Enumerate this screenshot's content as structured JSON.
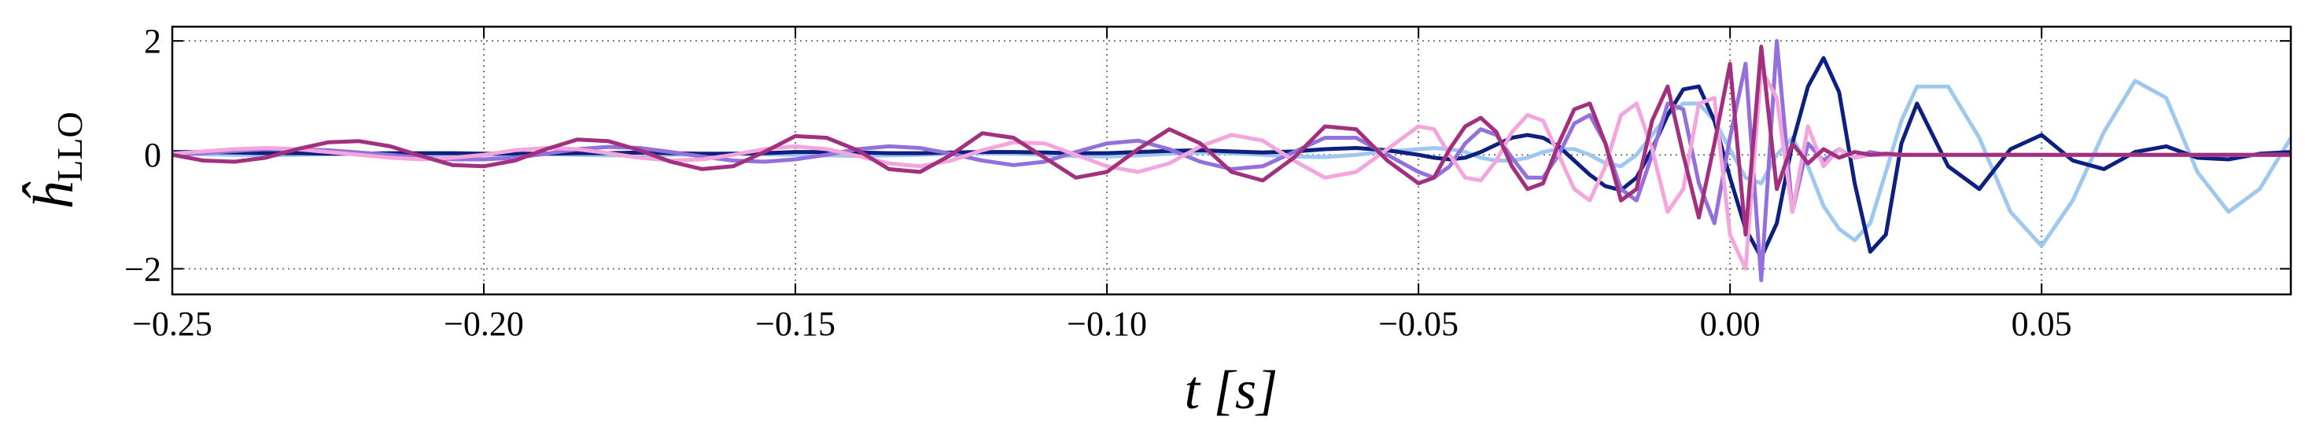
{
  "chart_data": {
    "type": "line",
    "xlabel": "t [s]",
    "ylabel": "ĥ",
    "ylabel_sub": "LLO",
    "xlim": [
      -0.25,
      0.09
    ],
    "ylim": [
      -2.45,
      2.25
    ],
    "xticks": [
      {
        "value": -0.25,
        "label": "−0.25"
      },
      {
        "value": -0.2,
        "label": "−0.20"
      },
      {
        "value": -0.15,
        "label": "−0.15"
      },
      {
        "value": -0.1,
        "label": "−0.10"
      },
      {
        "value": -0.05,
        "label": "−0.05"
      },
      {
        "value": 0,
        "label": "0.00"
      },
      {
        "value": 0.05,
        "label": "0.05"
      }
    ],
    "yticks": [
      {
        "value": -2,
        "label": "−2"
      },
      0,
      2
    ],
    "grid": true,
    "x": [
      -0.25,
      -0.245,
      -0.24,
      -0.235,
      -0.23,
      -0.225,
      -0.22,
      -0.215,
      -0.21,
      -0.205,
      -0.2,
      -0.195,
      -0.19,
      -0.185,
      -0.18,
      -0.175,
      -0.17,
      -0.165,
      -0.16,
      -0.155,
      -0.15,
      -0.145,
      -0.14,
      -0.135,
      -0.13,
      -0.125,
      -0.12,
      -0.115,
      -0.11,
      -0.105,
      -0.1,
      -0.095,
      -0.09,
      -0.085,
      -0.08,
      -0.075,
      -0.07,
      -0.065,
      -0.06,
      -0.055,
      -0.05,
      -0.0475,
      -0.045,
      -0.0425,
      -0.04,
      -0.0375,
      -0.035,
      -0.0325,
      -0.03,
      -0.0275,
      -0.025,
      -0.0225,
      -0.02,
      -0.0175,
      -0.015,
      -0.0125,
      -0.01,
      -0.0075,
      -0.005,
      -0.0025,
      0,
      0.0025,
      0.005,
      0.0075,
      0.01,
      0.0125,
      0.015,
      0.0175,
      0.02,
      0.0225,
      0.025,
      0.0275,
      0.03,
      0.035,
      0.04,
      0.045,
      0.05,
      0.055,
      0.06,
      0.065,
      0.07,
      0.075,
      0.08,
      0.085,
      0.09
    ],
    "series": [
      {
        "color": "#9fc8ee",
        "values": [
          0.02,
          0.01,
          0,
          -0.01,
          0,
          0.01,
          0.02,
          0.01,
          0,
          -0.01,
          0,
          0.01,
          0.01,
          0,
          -0.01,
          -0.01,
          0,
          0.01,
          0.02,
          0.01,
          0,
          -0.01,
          -0.02,
          -0.01,
          0,
          0.02,
          0.03,
          0.02,
          0,
          -0.02,
          -0.03,
          -0.01,
          0.02,
          0.04,
          0.03,
          0,
          -0.03,
          -0.04,
          0,
          0.06,
          0.1,
          0.12,
          0.1,
          0.05,
          -0.05,
          -0.1,
          -0.1,
          -0.05,
          0.05,
          0.1,
          0.1,
          0,
          -0.15,
          -0.2,
          0,
          0.35,
          0.7,
          0.9,
          0.9,
          0.6,
          0.1,
          -0.4,
          -0.5,
          0,
          0.3,
          -0.2,
          -0.9,
          -1.3,
          -1.5,
          -1.2,
          -0.3,
          0.6,
          1.2,
          1.2,
          0.3,
          -1,
          -1.6,
          -0.8,
          0.4,
          1.3,
          1,
          -0.3,
          -1,
          -0.6,
          0.3
        ]
      },
      {
        "color": "#0d2080",
        "values": [
          0.05,
          0.05,
          0.04,
          0.03,
          0.03,
          0.02,
          0.02,
          0.03,
          0.03,
          0.03,
          0.02,
          0.02,
          0.02,
          0.03,
          0.03,
          0.04,
          0.03,
          0.02,
          0.02,
          0.03,
          0.05,
          0.05,
          0.04,
          0.03,
          0.03,
          0.04,
          0.05,
          0.05,
          0.04,
          0.03,
          0.03,
          0.05,
          0.07,
          0.08,
          0.06,
          0.04,
          0.06,
          0.1,
          0.12,
          0.08,
          0,
          -0.05,
          -0.08,
          -0.05,
          0.05,
          0.18,
          0.3,
          0.35,
          0.3,
          0.15,
          -0.1,
          -0.35,
          -0.55,
          -0.62,
          -0.4,
          0.1,
          0.7,
          1.15,
          1.2,
          0.6,
          -0.4,
          -1.3,
          -1.8,
          -1.2,
          0.2,
          1.2,
          1.7,
          1.1,
          -0.5,
          -1.7,
          -1.4,
          0.2,
          0.9,
          -0.2,
          -0.6,
          0.1,
          0.35,
          -0.1,
          -0.25,
          0.05,
          0.15,
          -0.05,
          -0.08,
          0.02,
          0.05
        ]
      },
      {
        "color": "#9370db",
        "values": [
          0,
          0.03,
          0.07,
          0.1,
          0.1,
          0.08,
          0.04,
          0,
          -0.05,
          -0.08,
          -0.08,
          -0.05,
          0.02,
          0.1,
          0.14,
          0.12,
          0.05,
          -0.03,
          -0.1,
          -0.12,
          -0.08,
          0,
          0.1,
          0.15,
          0.12,
          0.02,
          -0.1,
          -0.18,
          -0.12,
          0.05,
          0.2,
          0.25,
          0.1,
          -0.12,
          -0.25,
          -0.2,
          0.05,
          0.3,
          0.3,
          0,
          -0.3,
          -0.4,
          -0.2,
          0.2,
          0.45,
          0.35,
          -0.05,
          -0.4,
          -0.4,
          0,
          0.55,
          0.7,
          0.2,
          -0.6,
          -0.8,
          0,
          0.9,
          0.8,
          -0.5,
          -1.2,
          0.3,
          1.6,
          -2.2,
          2,
          -1,
          0.2,
          -0.1,
          0.1,
          -0.05,
          0.05,
          0,
          0,
          0,
          0,
          0,
          0,
          0,
          0,
          0,
          0,
          0,
          0,
          0,
          0,
          0
        ]
      },
      {
        "color": "#f4a6dc",
        "values": [
          0.02,
          0.06,
          0.1,
          0.12,
          0.1,
          0.05,
          0,
          -0.05,
          -0.08,
          -0.05,
          0,
          0.08,
          0.12,
          0.1,
          0.03,
          -0.05,
          -0.1,
          -0.08,
          0,
          0.1,
          0.15,
          0.1,
          -0.02,
          -0.15,
          -0.2,
          -0.1,
          0.08,
          0.22,
          0.2,
          0,
          -0.2,
          -0.3,
          -0.15,
          0.15,
          0.35,
          0.25,
          -0.1,
          -0.4,
          -0.3,
          0.1,
          0.5,
          0.45,
          0,
          -0.4,
          -0.45,
          -0.1,
          0.4,
          0.7,
          0.6,
          0,
          -0.6,
          -0.8,
          -0.2,
          0.7,
          0.9,
          0.1,
          -1,
          -0.6,
          0.9,
          1,
          -1.4,
          -2,
          1.5,
          1,
          -1,
          0.5,
          -0.2,
          0.1,
          -0.05,
          0,
          0,
          0,
          0,
          0,
          0,
          0,
          0,
          0,
          0,
          0,
          0,
          0,
          0,
          0,
          0
        ]
      },
      {
        "color": "#a3307f",
        "values": [
          0,
          -0.1,
          -0.12,
          -0.05,
          0.1,
          0.22,
          0.24,
          0.15,
          -0.02,
          -0.18,
          -0.2,
          -0.1,
          0.1,
          0.27,
          0.24,
          0.08,
          -0.12,
          -0.25,
          -0.2,
          0.05,
          0.33,
          0.3,
          0.08,
          -0.25,
          -0.3,
          0,
          0.38,
          0.3,
          -0.05,
          -0.4,
          -0.3,
          0.1,
          0.45,
          0.2,
          -0.3,
          -0.45,
          -0.05,
          0.5,
          0.45,
          -0.1,
          -0.5,
          -0.4,
          0.1,
          0.5,
          0.65,
          0.4,
          -0.2,
          -0.6,
          -0.5,
          0.2,
          0.8,
          0.9,
          0.2,
          -0.8,
          -0.6,
          0.6,
          1.2,
          0,
          -1.1,
          0.2,
          1.6,
          -1.4,
          1.9,
          -0.6,
          0.2,
          -0.15,
          0.1,
          -0.05,
          0.05,
          0,
          0.02,
          0,
          0,
          0,
          0,
          0,
          0,
          0,
          0,
          0,
          0,
          0,
          0,
          0,
          0
        ]
      }
    ]
  }
}
